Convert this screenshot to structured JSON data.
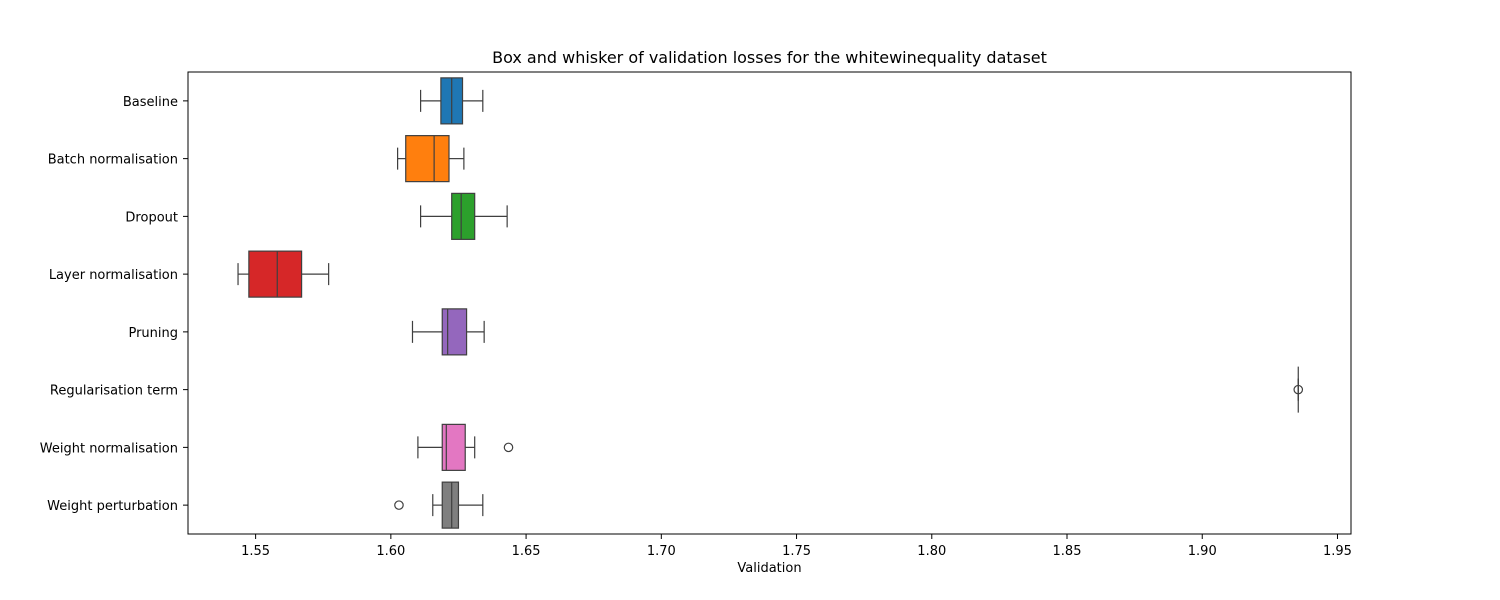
{
  "chart_data": {
    "type": "box",
    "title": "Box and whisker of validation losses for the whitewinequality dataset",
    "xlabel": "Validation",
    "ylabel": "",
    "xlim": [
      1.525,
      1.955
    ],
    "xticks": [
      1.55,
      1.6,
      1.65,
      1.7,
      1.75,
      1.8,
      1.85,
      1.9,
      1.95
    ],
    "xtick_labels": [
      "1.55",
      "1.60",
      "1.65",
      "1.70",
      "1.75",
      "1.80",
      "1.85",
      "1.90",
      "1.95"
    ],
    "grid": false,
    "legend": "none",
    "series": [
      {
        "category": "Baseline",
        "color": "#1f77b4",
        "whisker_low": 1.611,
        "q1": 1.6185,
        "median": 1.6225,
        "q3": 1.6265,
        "whisker_high": 1.634,
        "outliers": []
      },
      {
        "category": "Batch normalisation",
        "color": "#ff7f0e",
        "whisker_low": 1.6025,
        "q1": 1.6055,
        "median": 1.616,
        "q3": 1.6215,
        "whisker_high": 1.627,
        "outliers": []
      },
      {
        "category": "Dropout",
        "color": "#2ca02c",
        "whisker_low": 1.611,
        "q1": 1.6225,
        "median": 1.626,
        "q3": 1.631,
        "whisker_high": 1.643,
        "outliers": []
      },
      {
        "category": "Layer normalisation",
        "color": "#d62728",
        "whisker_low": 1.5435,
        "q1": 1.5475,
        "median": 1.558,
        "q3": 1.567,
        "whisker_high": 1.577,
        "outliers": []
      },
      {
        "category": "Pruning",
        "color": "#9467bd",
        "whisker_low": 1.608,
        "q1": 1.619,
        "median": 1.621,
        "q3": 1.628,
        "whisker_high": 1.6345,
        "outliers": []
      },
      {
        "category": "Regularisation term",
        "color": "#8c564b",
        "whisker_low": 1.9355,
        "q1": 1.9355,
        "median": 1.9355,
        "q3": 1.9355,
        "whisker_high": 1.9355,
        "outliers": [
          1.9355
        ]
      },
      {
        "category": "Weight normalisation",
        "color": "#e377c2",
        "whisker_low": 1.61,
        "q1": 1.619,
        "median": 1.6205,
        "q3": 1.6275,
        "whisker_high": 1.631,
        "outliers": [
          1.6435
        ]
      },
      {
        "category": "Weight perturbation",
        "color": "#7f7f7f",
        "whisker_low": 1.6155,
        "q1": 1.619,
        "median": 1.6225,
        "q3": 1.625,
        "whisker_high": 1.634,
        "outliers": [
          1.603
        ]
      }
    ]
  }
}
